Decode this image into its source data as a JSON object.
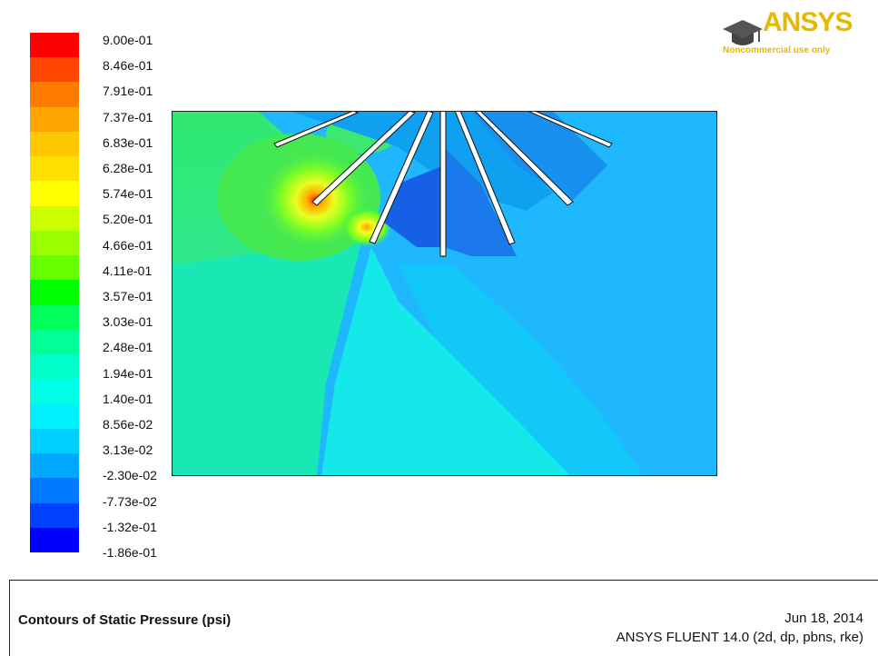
{
  "legend": {
    "labels": [
      "9.00e-01",
      "8.46e-01",
      "7.91e-01",
      "7.37e-01",
      "6.83e-01",
      "6.28e-01",
      "5.74e-01",
      "5.20e-01",
      "4.66e-01",
      "4.11e-01",
      "3.57e-01",
      "3.03e-01",
      "2.48e-01",
      "1.94e-01",
      "1.40e-01",
      "8.56e-02",
      "3.13e-02",
      "-2.30e-02",
      "-7.73e-02",
      "-1.32e-01",
      "-1.86e-01"
    ],
    "colors": [
      "#ff0000",
      "#ff4500",
      "#ff7a00",
      "#ffa500",
      "#ffc800",
      "#ffe000",
      "#ffff00",
      "#ccff00",
      "#99ff00",
      "#66ff00",
      "#00ff00",
      "#00ff5a",
      "#00ff96",
      "#00ffc8",
      "#00ffe6",
      "#00f0ff",
      "#00d0ff",
      "#00a8ff",
      "#0078ff",
      "#0040ff",
      "#0000ff"
    ]
  },
  "logo": {
    "text": "ANSYS",
    "subtext": "Noncommercial use only",
    "color": "#e6b800"
  },
  "plot": {
    "background_color": "#1fb8ff",
    "fin_color": "#ffffff"
  },
  "footer": {
    "title": "Contours of Static Pressure (psi)",
    "date": "Jun 18, 2014",
    "solver": "ANSYS FLUENT 14.0 (2d, dp, pbns, rke)"
  }
}
